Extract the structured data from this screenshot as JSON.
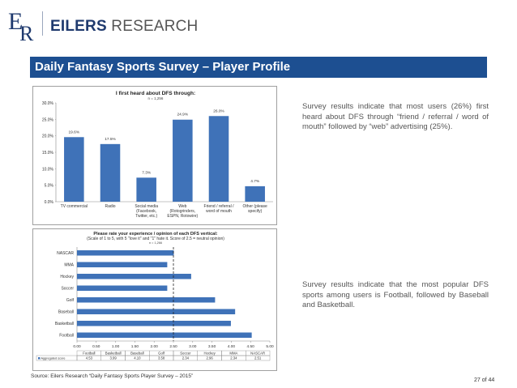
{
  "header": {
    "brand_bold": "EILERS",
    "brand_light": " RESEARCH"
  },
  "title_bar": {
    "title": "Daily Fantasy Sports Survey – Player Profile",
    "color": "#1d4f91"
  },
  "chart_data": [
    {
      "type": "bar",
      "title": "I first heard about DFS through:",
      "subtitle": "n = 1,256",
      "categories": [
        "TV commercial",
        "Radio",
        "Social media\n(Facebook,\nTwitter, etc.)",
        "Web\n(Rotogrinders,\nESPN, Rotowire)",
        "Friend / referral /\nword of mouth",
        "Other (please\nspecify)"
      ],
      "values": [
        19.6,
        17.5,
        7.3,
        24.9,
        26.0,
        4.7
      ],
      "value_labels": [
        "19.6%",
        "17.5%",
        "7.3%",
        "24.9%",
        "26.0%",
        "4.7%"
      ],
      "y_ticks": [
        "0.0%",
        "5.0%",
        "10.0%",
        "15.0%",
        "20.0%",
        "25.0%",
        "30.0%"
      ],
      "ylim": [
        0,
        30
      ],
      "grid": false,
      "bar_color": "#3f72b8"
    },
    {
      "type": "bar",
      "orientation": "horizontal",
      "title": "Please rate your experience / opinion of each DFS vertical:",
      "subtitle": "(Scale of 1 to 5, with 5 \"love it\" and \"1\" hate it. Score of 2.5 = neutral opinion)",
      "n": "n = 1,266",
      "categories": [
        "NASCAR",
        "MMA",
        "Hockey",
        "Soccer",
        "Golf",
        "Baseball",
        "Basketball",
        "Football"
      ],
      "values": [
        2.51,
        2.34,
        2.96,
        2.34,
        3.58,
        4.1,
        3.99,
        4.53
      ],
      "x_ticks": [
        "0.00",
        "0.50",
        "1.00",
        "1.50",
        "2.00",
        "2.50",
        "3.00",
        "3.50",
        "4.00",
        "4.50",
        "5.00"
      ],
      "xlim": [
        0,
        5
      ],
      "reference_line": 2.5,
      "bar_color": "#3f72b8",
      "table": {
        "row_label": "Aggregated score",
        "columns": [
          "Football",
          "Basketball",
          "Baseball",
          "Golf",
          "Soccer",
          "Hockey",
          "MMA",
          "NASCAR"
        ],
        "values": [
          "4.53",
          "3.99",
          "4.10",
          "3.58",
          "2.34",
          "2.96",
          "2.34",
          "2.51"
        ]
      }
    }
  ],
  "commentary": {
    "first": "Survey results indicate that most users (26%) first heard about DFS through “friend / referral / word of mouth” followed by “web” advertising (25%).",
    "second": "Survey results indicate that the most popular DFS sports among users is Football, followed by Baseball and Basketball."
  },
  "footer": {
    "source": "Source: Eilers Research “Daily Fantasy Sports Player Survey – 2015”",
    "page": "27 of 44"
  }
}
